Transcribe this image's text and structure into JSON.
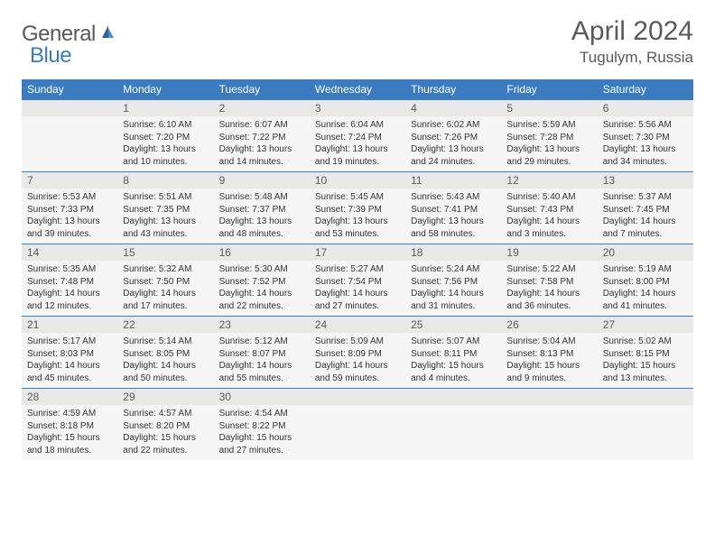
{
  "brand": {
    "part1": "General",
    "part2": "Blue"
  },
  "title": "April 2024",
  "location": "Tugulym, Russia",
  "colors": {
    "header_bg": "#3b7bbf",
    "header_text": "#ffffff",
    "daynum_bg": "#e8e8e8",
    "content_bg": "#f5f5f5",
    "text_gray": "#5a5a5a",
    "border": "#3b7bbf"
  },
  "weekdays": [
    "Sunday",
    "Monday",
    "Tuesday",
    "Wednesday",
    "Thursday",
    "Friday",
    "Saturday"
  ],
  "weeks": [
    [
      null,
      {
        "n": "1",
        "sr": "Sunrise: 6:10 AM",
        "ss": "Sunset: 7:20 PM",
        "dl": "Daylight: 13 hours and 10 minutes."
      },
      {
        "n": "2",
        "sr": "Sunrise: 6:07 AM",
        "ss": "Sunset: 7:22 PM",
        "dl": "Daylight: 13 hours and 14 minutes."
      },
      {
        "n": "3",
        "sr": "Sunrise: 6:04 AM",
        "ss": "Sunset: 7:24 PM",
        "dl": "Daylight: 13 hours and 19 minutes."
      },
      {
        "n": "4",
        "sr": "Sunrise: 6:02 AM",
        "ss": "Sunset: 7:26 PM",
        "dl": "Daylight: 13 hours and 24 minutes."
      },
      {
        "n": "5",
        "sr": "Sunrise: 5:59 AM",
        "ss": "Sunset: 7:28 PM",
        "dl": "Daylight: 13 hours and 29 minutes."
      },
      {
        "n": "6",
        "sr": "Sunrise: 5:56 AM",
        "ss": "Sunset: 7:30 PM",
        "dl": "Daylight: 13 hours and 34 minutes."
      }
    ],
    [
      {
        "n": "7",
        "sr": "Sunrise: 5:53 AM",
        "ss": "Sunset: 7:33 PM",
        "dl": "Daylight: 13 hours and 39 minutes."
      },
      {
        "n": "8",
        "sr": "Sunrise: 5:51 AM",
        "ss": "Sunset: 7:35 PM",
        "dl": "Daylight: 13 hours and 43 minutes."
      },
      {
        "n": "9",
        "sr": "Sunrise: 5:48 AM",
        "ss": "Sunset: 7:37 PM",
        "dl": "Daylight: 13 hours and 48 minutes."
      },
      {
        "n": "10",
        "sr": "Sunrise: 5:45 AM",
        "ss": "Sunset: 7:39 PM",
        "dl": "Daylight: 13 hours and 53 minutes."
      },
      {
        "n": "11",
        "sr": "Sunrise: 5:43 AM",
        "ss": "Sunset: 7:41 PM",
        "dl": "Daylight: 13 hours and 58 minutes."
      },
      {
        "n": "12",
        "sr": "Sunrise: 5:40 AM",
        "ss": "Sunset: 7:43 PM",
        "dl": "Daylight: 14 hours and 3 minutes."
      },
      {
        "n": "13",
        "sr": "Sunrise: 5:37 AM",
        "ss": "Sunset: 7:45 PM",
        "dl": "Daylight: 14 hours and 7 minutes."
      }
    ],
    [
      {
        "n": "14",
        "sr": "Sunrise: 5:35 AM",
        "ss": "Sunset: 7:48 PM",
        "dl": "Daylight: 14 hours and 12 minutes."
      },
      {
        "n": "15",
        "sr": "Sunrise: 5:32 AM",
        "ss": "Sunset: 7:50 PM",
        "dl": "Daylight: 14 hours and 17 minutes."
      },
      {
        "n": "16",
        "sr": "Sunrise: 5:30 AM",
        "ss": "Sunset: 7:52 PM",
        "dl": "Daylight: 14 hours and 22 minutes."
      },
      {
        "n": "17",
        "sr": "Sunrise: 5:27 AM",
        "ss": "Sunset: 7:54 PM",
        "dl": "Daylight: 14 hours and 27 minutes."
      },
      {
        "n": "18",
        "sr": "Sunrise: 5:24 AM",
        "ss": "Sunset: 7:56 PM",
        "dl": "Daylight: 14 hours and 31 minutes."
      },
      {
        "n": "19",
        "sr": "Sunrise: 5:22 AM",
        "ss": "Sunset: 7:58 PM",
        "dl": "Daylight: 14 hours and 36 minutes."
      },
      {
        "n": "20",
        "sr": "Sunrise: 5:19 AM",
        "ss": "Sunset: 8:00 PM",
        "dl": "Daylight: 14 hours and 41 minutes."
      }
    ],
    [
      {
        "n": "21",
        "sr": "Sunrise: 5:17 AM",
        "ss": "Sunset: 8:03 PM",
        "dl": "Daylight: 14 hours and 45 minutes."
      },
      {
        "n": "22",
        "sr": "Sunrise: 5:14 AM",
        "ss": "Sunset: 8:05 PM",
        "dl": "Daylight: 14 hours and 50 minutes."
      },
      {
        "n": "23",
        "sr": "Sunrise: 5:12 AM",
        "ss": "Sunset: 8:07 PM",
        "dl": "Daylight: 14 hours and 55 minutes."
      },
      {
        "n": "24",
        "sr": "Sunrise: 5:09 AM",
        "ss": "Sunset: 8:09 PM",
        "dl": "Daylight: 14 hours and 59 minutes."
      },
      {
        "n": "25",
        "sr": "Sunrise: 5:07 AM",
        "ss": "Sunset: 8:11 PM",
        "dl": "Daylight: 15 hours and 4 minutes."
      },
      {
        "n": "26",
        "sr": "Sunrise: 5:04 AM",
        "ss": "Sunset: 8:13 PM",
        "dl": "Daylight: 15 hours and 9 minutes."
      },
      {
        "n": "27",
        "sr": "Sunrise: 5:02 AM",
        "ss": "Sunset: 8:15 PM",
        "dl": "Daylight: 15 hours and 13 minutes."
      }
    ],
    [
      {
        "n": "28",
        "sr": "Sunrise: 4:59 AM",
        "ss": "Sunset: 8:18 PM",
        "dl": "Daylight: 15 hours and 18 minutes."
      },
      {
        "n": "29",
        "sr": "Sunrise: 4:57 AM",
        "ss": "Sunset: 8:20 PM",
        "dl": "Daylight: 15 hours and 22 minutes."
      },
      {
        "n": "30",
        "sr": "Sunrise: 4:54 AM",
        "ss": "Sunset: 8:22 PM",
        "dl": "Daylight: 15 hours and 27 minutes."
      },
      null,
      null,
      null,
      null
    ]
  ]
}
